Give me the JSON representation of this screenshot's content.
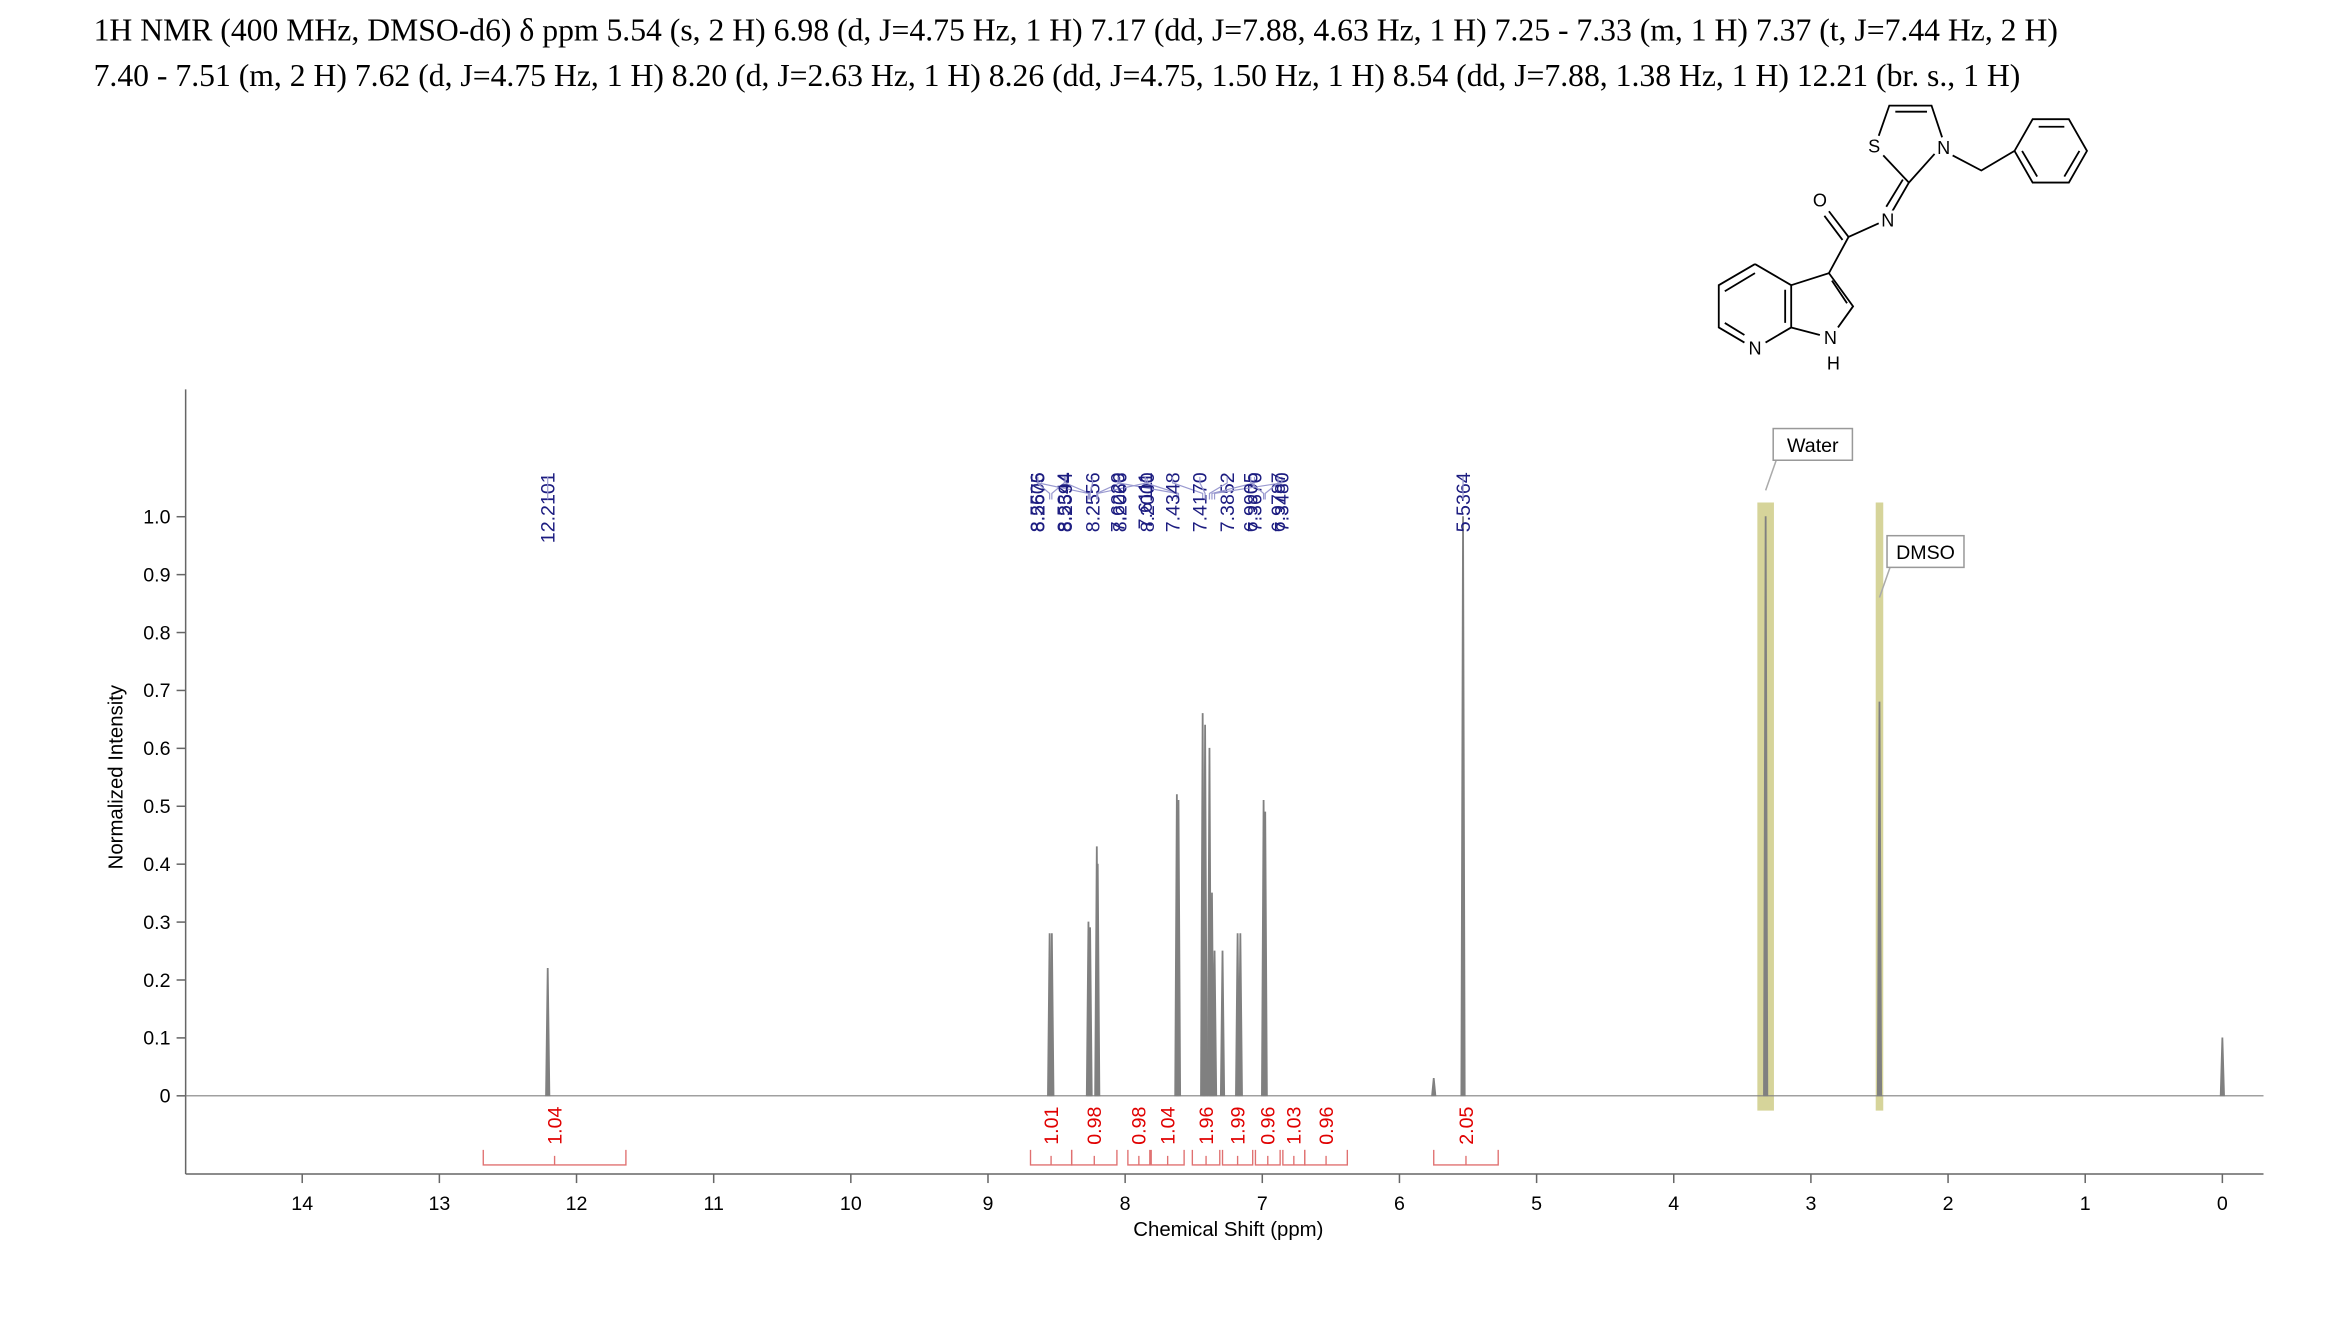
{
  "header": {
    "lines": [
      "1H NMR (400 MHz, DMSO-d6) δ ppm 5.54 (s, 2 H) 6.98 (d, J=4.75 Hz, 1 H) 7.17 (dd, J=7.88, 4.63 Hz, 1 H) 7.25 - 7.33 (m, 1 H) 7.37 (t, J=7.44 Hz, 2 H)",
      "7.40 - 7.51 (m, 2 H) 7.62 (d, J=4.75 Hz, 1 H) 8.20 (d, J=2.63 Hz, 1 H) 8.26 (dd, J=4.75, 1.50 Hz, 1 H) 8.54 (dd, J=7.88, 1.38 Hz, 1 H) 12.21 (br. s., 1 H)"
    ]
  },
  "structure": {
    "atoms": [
      "S",
      "N",
      "O",
      "N",
      "N",
      "H",
      "N"
    ]
  },
  "chart_data": {
    "type": "nmr",
    "xlabel": "Chemical Shift (ppm)",
    "ylabel": "Normalized Intensity",
    "xlim": [
      14.85,
      -0.3
    ],
    "ylim": [
      -0.135,
      1.22
    ],
    "xticks": [
      14,
      13,
      12,
      11,
      10,
      9,
      8,
      7,
      6,
      5,
      4,
      3,
      2,
      1,
      0
    ],
    "yticks": [
      0,
      0.1,
      0.2,
      0.3,
      0.4,
      0.5,
      0.6,
      0.7,
      0.8,
      0.9,
      {
        "value": 1,
        "label": "1.0"
      }
    ],
    "color": "#808080",
    "x": [
      12.2101,
      8.5506,
      8.5344,
      8.2675,
      8.2594,
      8.2556,
      8.2066,
      8.2,
      7.6229,
      7.6111,
      7.4348,
      7.417,
      7.3852,
      7.367,
      7.348,
      7.29,
      7.18,
      7.16,
      6.9905,
      6.9787,
      5.75,
      5.5364,
      3.33,
      2.5,
      0
    ],
    "values": [
      0.22,
      0.28,
      0.28,
      0.3,
      0.29,
      0.29,
      0.43,
      0.4,
      0.52,
      0.51,
      0.66,
      0.64,
      0.6,
      0.35,
      0.25,
      0.25,
      0.28,
      0.28,
      0.51,
      0.49,
      0.03,
      1.0,
      1.0,
      0.68,
      0.1
    ],
    "peak_labels": [
      {
        "value": 12.2101,
        "label": "12.2101"
      },
      {
        "value": 8.5506,
        "label": "8.5506"
      },
      {
        "value": 8.5344,
        "label": "8.5344"
      },
      {
        "value": 8.2675,
        "label": "8.2675"
      },
      {
        "value": 8.2594,
        "label": "8.2594"
      },
      {
        "value": 8.2556,
        "label": "8.2556"
      },
      {
        "value": 8.2066,
        "label": "8.2066"
      },
      {
        "value": 8.2,
        "label": "8.2000"
      },
      {
        "value": 7.6229,
        "label": "7.6229"
      },
      {
        "value": 7.6111,
        "label": "7.6111"
      },
      {
        "value": 7.4348,
        "label": "7.4348"
      },
      {
        "value": 7.417,
        "label": "7.4170"
      },
      {
        "value": 7.3852,
        "label": "7.3852"
      },
      {
        "value": 7.367,
        "label": "7.3670"
      },
      {
        "value": 7.348,
        "label": "7.3480"
      },
      {
        "value": 6.9905,
        "label": "6.9905"
      },
      {
        "value": 6.9787,
        "label": "6.9787"
      },
      {
        "value": 5.5364,
        "label": "5.5364"
      }
    ],
    "integrals": {
      "values": [
        1.04,
        1.01,
        0.98,
        0.98,
        1.04,
        1.96,
        1.99,
        0.96,
        1.03,
        0.96,
        2.05
      ],
      "ranges": [
        [
          12.68,
          11.64
        ],
        [
          8.69,
          8.39
        ],
        [
          8.39,
          8.06
        ],
        [
          7.98,
          7.82
        ],
        [
          7.81,
          7.57
        ],
        [
          7.51,
          7.31
        ],
        [
          7.29,
          7.07
        ],
        [
          7.05,
          6.87
        ],
        [
          6.85,
          6.69
        ],
        [
          6.69,
          6.38
        ],
        [
          5.75,
          5.28
        ]
      ]
    },
    "solvents": [
      {
        "label": "Water",
        "x": 3.33
      },
      {
        "label": "DMSO",
        "x": 2.5
      }
    ]
  }
}
